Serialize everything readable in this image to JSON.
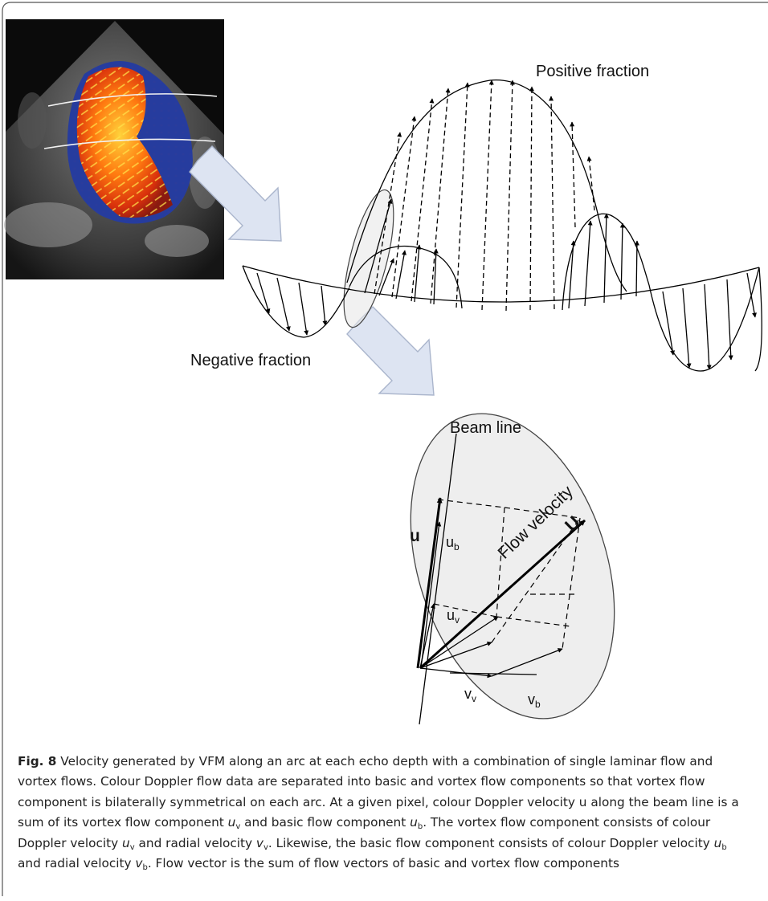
{
  "figure": {
    "labels": {
      "positive": "Positive fraction",
      "negative": "Negative fraction",
      "beam_line": "Beam line",
      "flow_velocity": "Flow velocity",
      "u_bold": "u",
      "u_b": "u",
      "u_b_sub": "b",
      "u_v": "u",
      "u_v_sub": "v",
      "v_v": "v",
      "v_v_sub": "v",
      "v_b": "v",
      "v_b_sub": "b",
      "U": "U"
    }
  },
  "caption": {
    "label": "Fig. 8",
    "s1": " Velocity generated by VFM along an arc at each echo depth with a combination of single laminar flow and vortex flows. Colour Doppler flow data are separated into basic and vortex flow components so that vortex flow component is bilaterally symmetrical on each arc. At a given pixel, colour Doppler velocity u along the beam line is a sum of its vortex flow component ",
    "uv": "u",
    "uv_sub": "v",
    "s2": " and basic flow component ",
    "ub": "u",
    "ub_sub": "b",
    "s3": ". The vortex flow component consists of colour Doppler velocity ",
    "uv2": "u",
    "uv2_sub": "v",
    "s4": " and radial velocity ",
    "vv": "v",
    "vv_sub": "v",
    "s5": ". Likewise, the basic flow component consists of colour Doppler velocity ",
    "ub2": "u",
    "ub2_sub": "b",
    "s6": " and radial velocity ",
    "vb": "v",
    "vb_sub": "b",
    "s7": ". Flow vector is the sum of flow vectors of basic and vortex flow components"
  }
}
